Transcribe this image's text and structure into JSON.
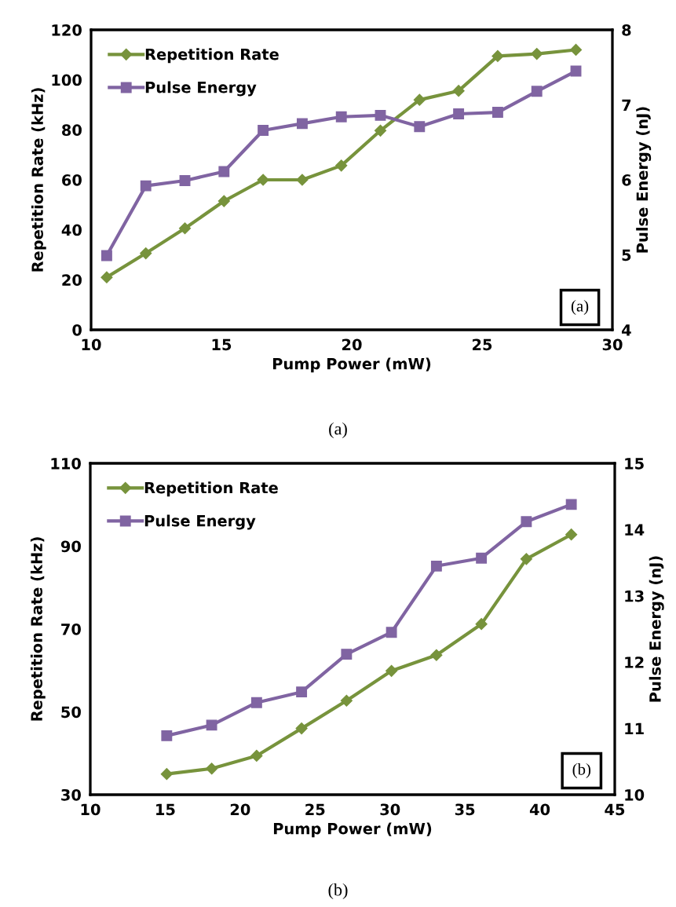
{
  "chart_data": [
    {
      "type": "line",
      "xlabel": "Pump Power (mW)",
      "ylabel": "Repetition Rate (kHz)",
      "y2label": "Pulse Energy (nJ)",
      "x": [
        10.6,
        12.1,
        13.6,
        15.1,
        16.6,
        18.1,
        19.6,
        21.1,
        22.6,
        24.1,
        25.6,
        27.1,
        28.6
      ],
      "series": [
        {
          "name": "Repetition Rate",
          "color": "#77933c",
          "marker": "diamond",
          "values": [
            21,
            30.6,
            40.6,
            51.5,
            60,
            60,
            65.7,
            79.7,
            92,
            95.6,
            109.5,
            110.4,
            112
          ]
        },
        {
          "name": "Pulse Energy",
          "color": "#8064a2",
          "marker": "square",
          "axis": "y2",
          "values": [
            4.99,
            5.92,
            5.99,
            6.11,
            6.66,
            6.75,
            6.84,
            6.86,
            6.71,
            6.88,
            6.9,
            7.18,
            7.45
          ]
        }
      ],
      "xlim": [
        10,
        30
      ],
      "xticks": [
        10,
        15,
        20,
        25,
        30
      ],
      "ylim": [
        0,
        120
      ],
      "yticks": [
        0,
        20,
        40,
        60,
        80,
        100,
        120
      ],
      "y2lim": [
        4,
        8
      ],
      "y2ticks": [
        4,
        5,
        6,
        7,
        8
      ],
      "grid": false,
      "legend": "top left",
      "line_style": "solid",
      "annotations": [
        "(a)",
        "(a)"
      ]
    },
    {
      "type": "line",
      "xlabel": "Pump Power (mW)",
      "ylabel": "Repetition Rate (kHz)",
      "y2label": "Pulse Energy (nJ)",
      "x": [
        15.1,
        18.1,
        21.1,
        24.1,
        27.1,
        30.1,
        33.1,
        36.1,
        39.1,
        42.1
      ],
      "series": [
        {
          "name": "Repetition Rate",
          "color": "#77933c",
          "marker": "diamond",
          "values": [
            35,
            36.3,
            39.4,
            46,
            52.7,
            59.9,
            63.7,
            71.2,
            86.9,
            92.8
          ]
        },
        {
          "name": "Pulse Energy",
          "color": "#8064a2",
          "marker": "square",
          "axis": "y2",
          "values": [
            10.89,
            11.05,
            11.39,
            11.55,
            12.12,
            12.45,
            13.45,
            13.57,
            14.12,
            14.38
          ]
        }
      ],
      "xlim": [
        10,
        45
      ],
      "xticks": [
        10,
        15,
        20,
        25,
        30,
        35,
        40,
        45
      ],
      "ylim": [
        30,
        110
      ],
      "yticks": [
        30,
        50,
        70,
        90,
        110
      ],
      "y2lim": [
        10,
        15
      ],
      "y2ticks": [
        10,
        11,
        12,
        13,
        14,
        15
      ],
      "grid": false,
      "legend": "top left",
      "line_style": "solid",
      "annotations": [
        "(b)",
        "(b)"
      ]
    }
  ]
}
